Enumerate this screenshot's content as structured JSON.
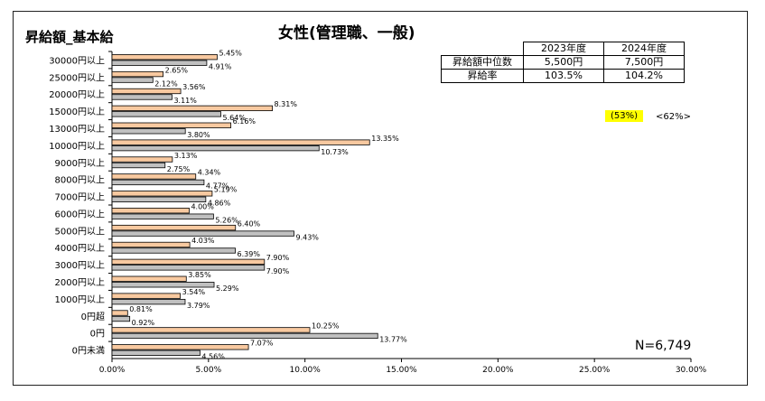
{
  "header": {
    "corner_label": "昇給額_基本給",
    "title": "女性(管理職、一般)"
  },
  "summary_table": {
    "years": [
      "2023年度",
      "2024年度"
    ],
    "rows": [
      {
        "label": "昇給額中位数",
        "values": [
          "5,500円",
          "7,500円"
        ]
      },
      {
        "label": "昇給率",
        "values": [
          "103.5%",
          "104.2%"
        ]
      }
    ]
  },
  "annotations": {
    "pct_highlight": "(53%)",
    "pct_plain": "<62%>",
    "n_label": "N=6,749"
  },
  "colors": {
    "series_2024": "#f8c9a0",
    "series_2023": "#c0c0c0",
    "outline": "#000000"
  },
  "chart_data": {
    "type": "bar",
    "orientation": "horizontal",
    "title": "女性(管理職、一般)",
    "xlabel": "",
    "ylabel": "",
    "xlim": [
      0,
      30
    ],
    "x_ticks": [
      "0.00%",
      "5.00%",
      "10.00%",
      "15.00%",
      "20.00%",
      "25.00%",
      "30.00%"
    ],
    "categories": [
      "30000円以上",
      "25000円以上",
      "20000円以上",
      "15000円以上",
      "13000円以上",
      "10000円以上",
      "9000円以上",
      "8000円以上",
      "7000円以上",
      "6000円以上",
      "5000円以上",
      "4000円以上",
      "3000円以上",
      "2000円以上",
      "1000円以上",
      "0円超",
      "0円",
      "0円未満"
    ],
    "series": [
      {
        "color": "#f8c9a0",
        "values": [
          5.45,
          2.65,
          3.56,
          8.31,
          6.16,
          13.35,
          3.13,
          4.34,
          5.19,
          4.0,
          6.4,
          4.03,
          7.9,
          3.85,
          3.54,
          0.81,
          10.25,
          7.07
        ],
        "labels": [
          "5.45%",
          "2.65%",
          "3.56%",
          "8.31%",
          "6.16%",
          "13.35%",
          "3.13%",
          "4.34%",
          "5.19%",
          "4.00%",
          "6.40%",
          "4.03%",
          "7.90%",
          "3.85%",
          "3.54%",
          "0.81%",
          "10.25%",
          "7.07%"
        ]
      },
      {
        "color": "#c0c0c0",
        "values": [
          4.91,
          2.12,
          3.11,
          5.64,
          3.8,
          10.73,
          2.75,
          4.77,
          4.86,
          5.26,
          9.43,
          6.39,
          7.9,
          5.29,
          3.79,
          0.92,
          13.77,
          4.56
        ],
        "labels": [
          "4.91%",
          "2.12%",
          "3.11%",
          "5.64%",
          "3.80%",
          "10.73%",
          "2.75%",
          "4.77%",
          "4.86%",
          "5.26%",
          "9.43%",
          "6.39%",
          "7.90%",
          "5.29%",
          "3.79%",
          "0.92%",
          "13.77%",
          "4.56%"
        ]
      }
    ],
    "grid": false,
    "legend": "none"
  }
}
